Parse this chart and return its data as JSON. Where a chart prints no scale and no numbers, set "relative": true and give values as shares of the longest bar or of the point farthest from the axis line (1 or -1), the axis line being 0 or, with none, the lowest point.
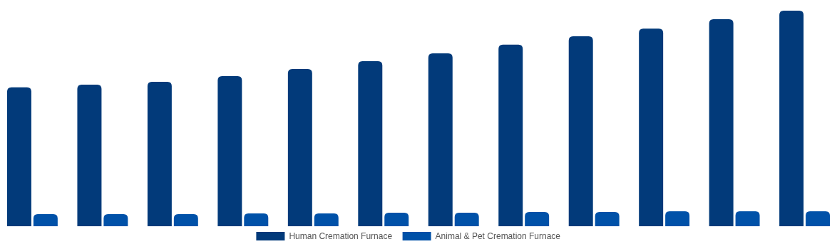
{
  "chart_data": {
    "type": "bar",
    "relative": true,
    "categories": [
      null,
      null,
      null,
      null,
      null,
      null,
      null,
      null,
      null,
      null,
      null,
      null
    ],
    "series": [
      {
        "name": "Human Cremation Furnace",
        "color": "#023a7a",
        "values": [
          0.644,
          0.657,
          0.67,
          0.696,
          0.729,
          0.766,
          0.802,
          0.842,
          0.881,
          0.917,
          0.96,
          1
        ]
      },
      {
        "name": "Animal & Pet Cremation Furnace",
        "color": "#0051a8",
        "values": [
          0.056,
          0.056,
          0.056,
          0.059,
          0.059,
          0.063,
          0.063,
          0.066,
          0.066,
          0.069,
          0.069,
          0.069
        ]
      }
    ],
    "legend": "bottom"
  }
}
